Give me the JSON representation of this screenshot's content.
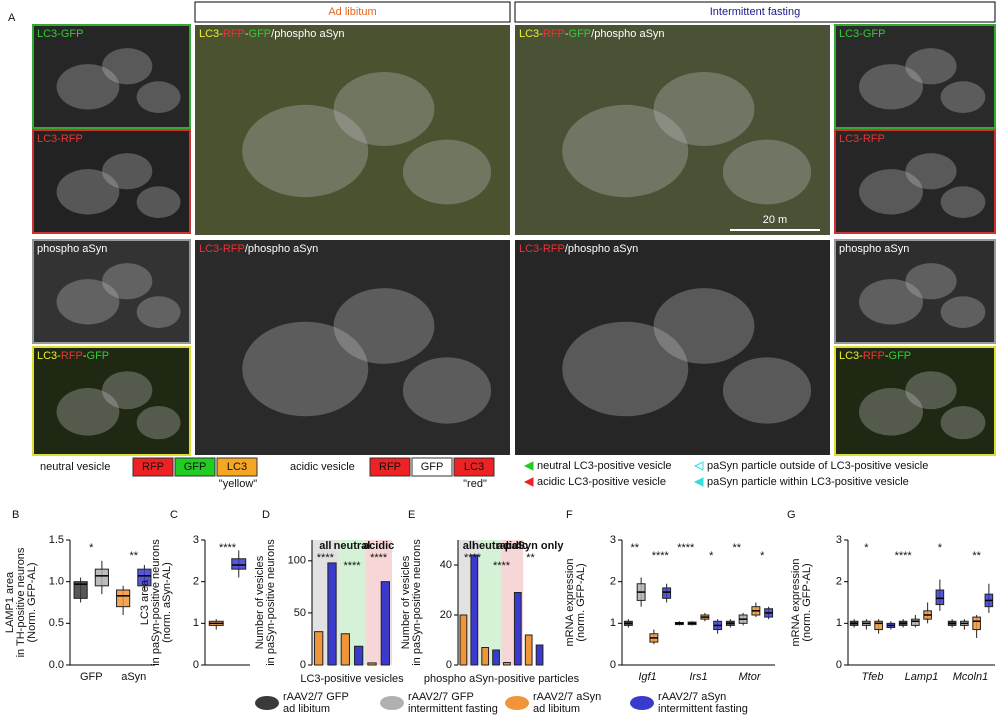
{
  "panel_a": {
    "letter": "A",
    "headers": [
      "Ad libitum",
      "Intermittent fasting"
    ],
    "images": [
      {
        "label": [
          {
            "text": "LC3-GFP",
            "color": "#3c3"
          }
        ]
      },
      {
        "label": [
          {
            "text": "LC3-RFP",
            "color": "#e33"
          }
        ]
      },
      {
        "label": [
          {
            "text": "phospho aSyn",
            "color": "#fff"
          }
        ]
      },
      {
        "label": [
          {
            "text": "LC3-",
            "color": "#ee3"
          },
          {
            "text": "RFP",
            "color": "#e33"
          },
          {
            "text": "-",
            "color": "#ee3"
          },
          {
            "text": "GFP",
            "color": "#3c3"
          }
        ]
      },
      {
        "label": [
          {
            "text": "LC3-",
            "color": "#ee3"
          },
          {
            "text": "RFP",
            "color": "#e33"
          },
          {
            "text": "-",
            "color": "#ee3"
          },
          {
            "text": "GFP",
            "color": "#3c3"
          },
          {
            "text": "/phospho aSyn",
            "color": "#fff"
          }
        ]
      },
      {
        "label": [
          {
            "text": "LC3-RFP",
            "color": "#e33"
          },
          {
            "text": "/phospho aSyn",
            "color": "#fff"
          }
        ]
      },
      {
        "label": [
          {
            "text": "LC3-",
            "color": "#ee3"
          },
          {
            "text": "RFP",
            "color": "#e33"
          },
          {
            "text": "-",
            "color": "#ee3"
          },
          {
            "text": "GFP",
            "color": "#3c3"
          },
          {
            "text": "/phospho aSyn",
            "color": "#fff"
          }
        ]
      },
      {
        "label": [
          {
            "text": "LC3-RFP",
            "color": "#e33"
          },
          {
            "text": "/phospho aSyn",
            "color": "#fff"
          }
        ]
      },
      {
        "label": [
          {
            "text": "LC3-GFP",
            "color": "#3c3"
          }
        ]
      },
      {
        "label": [
          {
            "text": "LC3-RFP",
            "color": "#e33"
          }
        ]
      },
      {
        "label": [
          {
            "text": "phospho aSyn",
            "color": "#fff"
          }
        ]
      },
      {
        "label": [
          {
            "text": "LC3-",
            "color": "#ee3"
          },
          {
            "text": "RFP",
            "color": "#e33"
          },
          {
            "text": "-",
            "color": "#ee3"
          },
          {
            "text": "GFP",
            "color": "#3c3"
          }
        ]
      }
    ],
    "scale_bar": "20 m",
    "key": [
      {
        "title": "neutral vesicle",
        "boxes": [
          {
            "text": "RFP",
            "color": "#e22"
          },
          {
            "text": "GFP",
            "color": "#2c2"
          },
          {
            "text": "LC3",
            "color": "#f5a623"
          }
        ],
        "note": "\"yellow\""
      },
      {
        "title": "acidic vesicle",
        "boxes": [
          {
            "text": "RFP",
            "color": "#e22"
          },
          {
            "text": "GFP",
            "color": "#fff"
          },
          {
            "text": "LC3",
            "color": "#e22"
          }
        ],
        "note": "\"red\""
      }
    ],
    "arrow_legend": [
      {
        "text": "neutral LC3-positive vesicle",
        "color": "#2c2"
      },
      {
        "text": "acidic LC3-positive vesicle",
        "color": "#e22"
      },
      {
        "text": "paSyn particle outside of LC3-positive vesicle",
        "color": "#3dd"
      },
      {
        "text": "paSyn particle within LC3-positive vesicle",
        "color": "#3dd"
      }
    ]
  },
  "legend": [
    {
      "lines": [
        "rAAV2/7 GFP",
        "ad libitum"
      ],
      "color": "#3a3a3a"
    },
    {
      "lines": [
        "rAAV2/7 GFP",
        "intermittent fasting"
      ],
      "color": "#b0b0b0"
    },
    {
      "lines": [
        "rAAV2/7 aSyn",
        "ad libitum"
      ],
      "color": "#f0953a"
    },
    {
      "lines": [
        "rAAV2/7 aSyn",
        "intermittent fasting"
      ],
      "color": "#3a3acc"
    }
  ],
  "chart_data": [
    {
      "type": "box",
      "letter": "B",
      "ylabel": [
        "LAMP1 area",
        "in TH-positive neurons",
        "(Norm. GFP-AL)"
      ],
      "ylim": [
        0,
        1.5
      ],
      "yticks": [
        {
          "value": 0,
          "label": "0.0"
        },
        {
          "value": 0.5,
          "label": "0.5"
        },
        {
          "value": 1,
          "label": "1.0"
        },
        {
          "value": 1.5,
          "label": "1.5"
        }
      ],
      "categories": [
        "GFP",
        "aSyn"
      ],
      "series": [
        {
          "values": [
            [
              0.75,
              0.8,
              0.97,
              1.0,
              1.05
            ],
            null
          ]
        },
        {
          "values": [
            [
              0.85,
              0.95,
              1.07,
              1.15,
              1.25
            ],
            null
          ]
        },
        {
          "values": [
            null,
            [
              0.6,
              0.7,
              0.83,
              0.9,
              0.95
            ]
          ]
        },
        {
          "values": [
            null,
            [
              0.9,
              0.95,
              1.07,
              1.15,
              1.2
            ]
          ]
        }
      ],
      "annotations": [
        "*",
        "**"
      ]
    },
    {
      "type": "box",
      "letter": "C",
      "ylabel": [
        "LC3 area",
        "in paSyn-positive neurons",
        "(norm. aSyn-AL)"
      ],
      "ylim": [
        0,
        3
      ],
      "yticks": [
        0,
        1,
        2,
        3
      ],
      "categories": [
        null
      ],
      "series": [
        {
          "values": [
            null
          ]
        },
        {
          "values": [
            null
          ]
        },
        {
          "values": [
            [
              0.85,
              0.95,
              1,
              1.05,
              1.1
            ]
          ]
        },
        {
          "values": [
            [
              2.1,
              2.3,
              2.4,
              2.55,
              2.75
            ]
          ]
        }
      ],
      "annotations": [
        "****"
      ]
    },
    {
      "type": "bar",
      "letter": "D",
      "ylabel": [
        "Number of vesicles",
        "in paSyn-positive neurons"
      ],
      "xlabel": "LC3-positive vesicles",
      "ylim": [
        0,
        120
      ],
      "yticks": [
        0,
        50,
        100
      ],
      "categories": [
        "all",
        "neutral",
        "acidic"
      ],
      "band_colors": [
        "#e2e2e2",
        "#d6f2d6",
        "#f6d6d6"
      ],
      "series": [
        {
          "values": [
            null,
            null,
            null
          ]
        },
        {
          "values": [
            null,
            null,
            null
          ]
        },
        {
          "values": [
            32,
            30,
            2
          ]
        },
        {
          "values": [
            98,
            18,
            80
          ]
        }
      ],
      "annotations": [
        "****",
        "****",
        "****"
      ]
    },
    {
      "type": "bar",
      "letter": "E",
      "ylabel": [
        "Number of vesicles",
        "in paSyn-positive neurons"
      ],
      "xlabel": "phospho aSyn-positive particles",
      "ylim": [
        0,
        50
      ],
      "yticks": [
        0,
        20,
        40
      ],
      "categories": [
        "all",
        "neutral",
        "acidic",
        "paSyn only"
      ],
      "band_colors": [
        "#e2e2e2",
        "#d6f2d6",
        "#f6d6d6",
        "#ffffff"
      ],
      "series": [
        {
          "values": [
            null,
            null,
            null,
            null
          ]
        },
        {
          "values": [
            null,
            null,
            null,
            null
          ]
        },
        {
          "values": [
            20,
            7,
            1,
            12
          ]
        },
        {
          "values": [
            44,
            6,
            29,
            8
          ]
        }
      ],
      "annotations": [
        "****",
        "****",
        "**"
      ]
    },
    {
      "type": "box",
      "letter": "F",
      "ylabel": [
        "mRNA expression",
        "(norm. GFP-AL)"
      ],
      "ylim": [
        0,
        3
      ],
      "yticks": [
        0,
        1,
        2,
        3
      ],
      "categories": [
        "Igf1",
        "Irs1",
        "Mtor"
      ],
      "series": [
        {
          "values": [
            [
              0.9,
              0.95,
              1,
              1.05,
              1.1
            ],
            [
              0.95,
              0.97,
              1,
              1.02,
              1.05
            ],
            [
              0.9,
              0.95,
              1,
              1.05,
              1.1
            ]
          ]
        },
        {
          "values": [
            [
              1.4,
              1.55,
              1.75,
              1.95,
              2.1
            ],
            [
              0.95,
              0.97,
              1,
              1.03,
              1.05
            ],
            [
              0.95,
              1.0,
              1.1,
              1.2,
              1.25
            ]
          ]
        },
        {
          "values": [
            [
              0.5,
              0.55,
              0.65,
              0.75,
              0.85
            ],
            [
              1.05,
              1.1,
              1.15,
              1.2,
              1.25
            ],
            [
              1.15,
              1.2,
              1.3,
              1.4,
              1.5
            ]
          ]
        },
        {
          "values": [
            [
              1.5,
              1.6,
              1.75,
              1.85,
              1.95
            ],
            [
              0.75,
              0.85,
              0.95,
              1.05,
              1.1
            ],
            [
              1.1,
              1.15,
              1.25,
              1.35,
              1.4
            ]
          ]
        }
      ],
      "annotations": [
        "**",
        "****",
        "****",
        "*",
        "**",
        "*"
      ]
    },
    {
      "type": "box",
      "letter": "G",
      "ylabel": [
        "mRNA expression",
        "(norm. GFP-AL)"
      ],
      "ylim": [
        0,
        3
      ],
      "yticks": [
        0,
        1,
        2,
        3
      ],
      "categories": [
        "Tfeb",
        "Lamp1",
        "Mcoln1"
      ],
      "series": [
        {
          "values": [
            [
              0.9,
              0.95,
              1,
              1.05,
              1.1
            ],
            [
              0.9,
              0.95,
              1,
              1.05,
              1.1
            ],
            [
              0.9,
              0.95,
              1,
              1.05,
              1.1
            ]
          ]
        },
        {
          "values": [
            [
              0.85,
              0.95,
              1,
              1.05,
              1.1
            ],
            [
              0.9,
              0.95,
              1.05,
              1.1,
              1.2
            ],
            [
              0.85,
              0.95,
              1,
              1.05,
              1.1
            ]
          ]
        },
        {
          "values": [
            [
              0.75,
              0.85,
              1,
              1.05,
              1.1
            ],
            [
              1.0,
              1.1,
              1.2,
              1.3,
              1.5
            ],
            [
              0.65,
              0.85,
              1.05,
              1.15,
              1.2
            ]
          ]
        },
        {
          "values": [
            [
              0.85,
              0.9,
              0.95,
              1.0,
              1.05
            ],
            [
              1.3,
              1.45,
              1.6,
              1.8,
              2.05
            ],
            [
              1.25,
              1.4,
              1.55,
              1.7,
              1.95
            ]
          ]
        }
      ],
      "annotations": [
        "*",
        "****",
        "*",
        "**"
      ]
    }
  ]
}
